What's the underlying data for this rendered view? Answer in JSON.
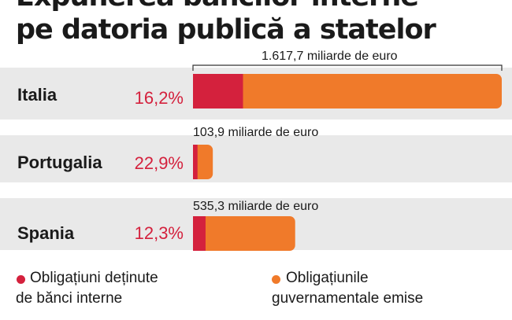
{
  "title_line1": "Expunerea băncilor interne",
  "title_line2": "pe datoria publică a statelor",
  "colors": {
    "domestic": "#d4213d",
    "issued": "#f07a2a",
    "band": "#e9e9e9"
  },
  "chart_data": {
    "type": "bar",
    "orientation": "horizontal",
    "title": "Expunerea băncilor interne pe datoria publică a statelor",
    "categories": [
      "Italia",
      "Portugalia",
      "Spania"
    ],
    "unit": "miliarde de euro",
    "totals": [
      1617.7,
      103.9,
      535.3
    ],
    "total_labels": [
      "1.617,7 miliarde de euro",
      "103,9 miliarde de euro",
      "535,3 miliarde de euro"
    ],
    "domestic_share_pct": [
      16.2,
      22.9,
      12.3
    ],
    "domestic_share_labels": [
      "16,2%",
      "22,9%",
      "12,3%"
    ],
    "series": [
      {
        "name": "Obligațiuni deținute de bănci interne",
        "color": "#d4213d"
      },
      {
        "name": "Obligațiunile guvernamentale emise",
        "color": "#f07a2a"
      }
    ],
    "legend_placement": "bottom"
  },
  "legend": {
    "item1_line1": "Obligațiuni deținute",
    "item1_line2": "de bănci interne",
    "item2_line1": "Obligațiunile",
    "item2_line2": "guvernamentale emise"
  }
}
